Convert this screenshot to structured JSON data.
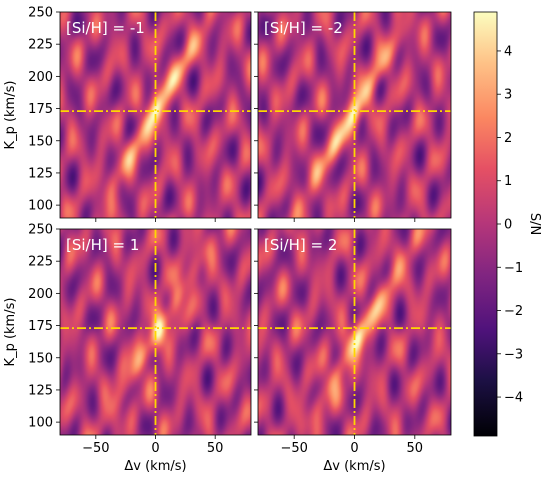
{
  "chart_data": {
    "type": "heatmap",
    "colormap": "magma",
    "panels": [
      {
        "label": "[Si/H] = -1",
        "peak": {
          "dv": 1,
          "kp": 175
        }
      },
      {
        "label": "[Si/H] = -2",
        "peak": {
          "dv": 0,
          "kp": 172
        }
      },
      {
        "label": "[Si/H] = 1",
        "peak": {
          "dv": 3,
          "kp": 172
        }
      },
      {
        "label": "[Si/H] = 2",
        "peak": {
          "dv": 3,
          "kp": 166
        }
      }
    ],
    "x": {
      "label": "Δv (km/s)",
      "range": [
        -80,
        80
      ],
      "ticks": [
        -50,
        0,
        50
      ],
      "tick_labels": [
        "−50",
        "0",
        "50"
      ]
    },
    "y": {
      "label": "K_p (km/s)",
      "range": [
        90,
        250
      ],
      "ticks": [
        100,
        125,
        150,
        175,
        200,
        225,
        250
      ],
      "tick_labels": [
        "100",
        "125",
        "150",
        "175",
        "200",
        "225",
        "250"
      ]
    },
    "markers": {
      "dv": 0,
      "kp": 173,
      "color": "#ffd700",
      "style": "dash-dot"
    },
    "colorbar": {
      "label": "S/N",
      "range": [
        -4.9,
        4.9
      ],
      "ticks": [
        -4,
        -3,
        -2,
        -1,
        0,
        1,
        2,
        3,
        4
      ],
      "tick_labels": [
        "−4",
        "−3",
        "−2",
        "−1",
        "0",
        "1",
        "2",
        "3",
        "4"
      ]
    }
  }
}
